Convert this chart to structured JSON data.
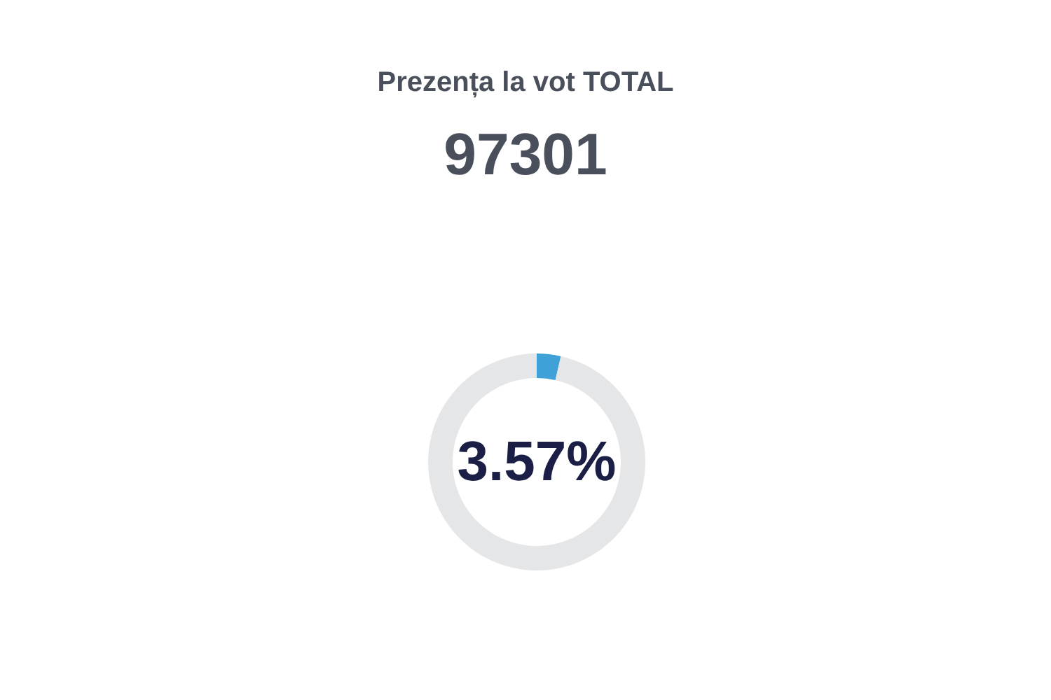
{
  "chart_data": {
    "type": "donut",
    "title": "Prezența la vot TOTAL",
    "subtitle": "97301",
    "categories": [
      null,
      null
    ],
    "values": [
      3.57,
      96.43
    ],
    "colors": [
      "#3fa1d8",
      "#e5e6e8"
    ],
    "value_labels": [
      "3.57%",
      null
    ]
  }
}
